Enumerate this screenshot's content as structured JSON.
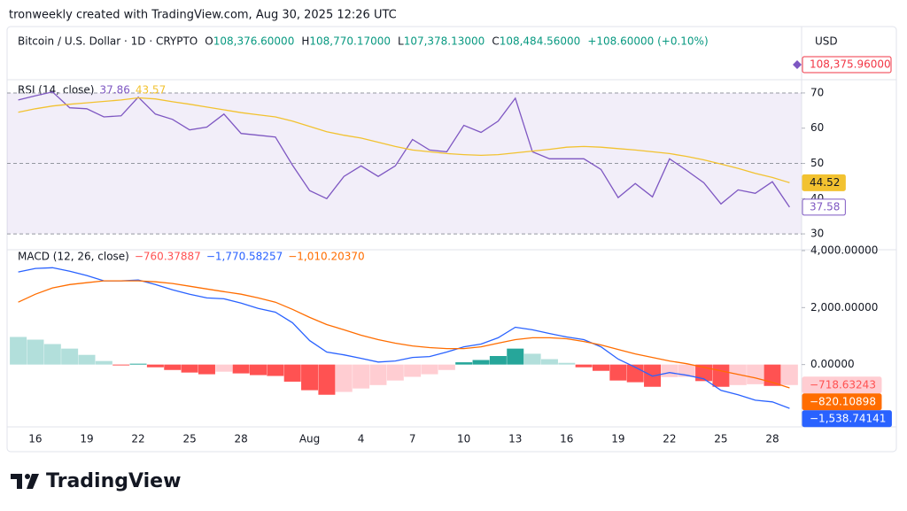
{
  "header": {
    "attribution": "tronweekly created with TradingView.com, Aug 30, 2025 12:26 UTC",
    "symbol": "Bitcoin / U.S. Dollar · 1D · CRYPTO",
    "ohlc": [
      {
        "label": "O",
        "value": "108,376.60000"
      },
      {
        "label": "H",
        "value": "108,770.17000"
      },
      {
        "label": "L",
        "value": "107,378.13000"
      },
      {
        "label": "C",
        "value": "108,484.56000"
      }
    ],
    "change": "+108.60000 (+0.10%)",
    "currency": "USD",
    "price_label": "108,375.96000"
  },
  "footer": {
    "logo": "TradingView"
  },
  "chart_data": [
    {
      "type": "line",
      "title": "RSI (14, close)",
      "ylim": [
        26,
        72.5
      ],
      "yticks": [
        30,
        40,
        50,
        60,
        70
      ],
      "band": [
        30,
        70
      ],
      "midline": 50,
      "band_color": "#7e57c2",
      "series": [
        {
          "color": "#7e57c2",
          "legend_value": "37.86",
          "values": [
            68.0,
            69.2,
            70.3,
            65.8,
            65.5,
            63.2,
            63.5,
            68.8,
            64.0,
            62.5,
            59.5,
            60.3,
            64.0,
            58.5,
            58.0,
            57.5,
            49.5,
            42.3,
            40.0,
            46.3,
            49.3,
            46.3,
            49.3,
            56.8,
            53.8,
            53.3,
            60.8,
            58.8,
            62.0,
            68.5,
            53.3,
            51.3,
            51.3,
            51.3,
            48.3,
            40.3,
            44.3,
            40.5,
            51.3,
            48.0,
            44.5,
            38.5,
            42.5,
            41.5,
            44.8,
            37.58
          ]
        },
        {
          "color": "#f2c230",
          "legend_value": "43.57",
          "values": [
            64.5,
            65.5,
            66.3,
            66.8,
            67.2,
            67.6,
            68.0,
            68.6,
            68.3,
            67.5,
            66.8,
            66.0,
            65.2,
            64.4,
            63.8,
            63.2,
            62.0,
            60.5,
            59.0,
            58.0,
            57.2,
            56.0,
            54.8,
            53.8,
            53.3,
            52.8,
            52.5,
            52.3,
            52.5,
            53.0,
            53.5,
            54.0,
            54.6,
            54.8,
            54.6,
            54.2,
            53.8,
            53.3,
            52.8,
            52.0,
            51.0,
            49.8,
            48.6,
            47.2,
            46.0,
            44.52
          ]
        }
      ]
    },
    {
      "type": "macd",
      "title": "MACD (12, 26, close)",
      "categories": [
        null,
        "16",
        null,
        null,
        "19",
        null,
        null,
        "22",
        null,
        null,
        "25",
        null,
        null,
        "28",
        null,
        null,
        null,
        "Aug",
        null,
        null,
        "4",
        null,
        null,
        "7",
        null,
        null,
        "10",
        null,
        null,
        "13",
        null,
        null,
        "16",
        null,
        null,
        "19",
        null,
        null,
        "22",
        null,
        null,
        "25",
        null,
        null,
        "28",
        null
      ],
      "ylim": [
        -2125,
        4000
      ],
      "yticks": [
        {
          "value": 0,
          "label": "0.00000"
        },
        {
          "value": 2000,
          "label": "2,000.00000"
        },
        {
          "value": 4000,
          "label": "4,000.00000"
        }
      ],
      "histogram": {
        "legend_value": "−760.37887",
        "last_label": "−718.63243",
        "colors": {
          "grow_above": "#26a69a",
          "fall_above": "#b2dfdb",
          "grow_below": "#ffcdd2",
          "fall_below": "#ff5252"
        },
        "values": [
          970,
          875,
          720,
          560,
          340,
          125,
          -30,
          30,
          -95,
          -190,
          -280,
          -340,
          -250,
          -310,
          -370,
          -400,
          -600,
          -900,
          -1060,
          -960,
          -840,
          -720,
          -560,
          -430,
          -340,
          -190,
          80,
          160,
          300,
          560,
          380,
          190,
          60,
          -95,
          -220,
          -560,
          -620,
          -780,
          -440,
          -430,
          -580,
          -780,
          -720,
          -690,
          -750,
          -718.63243
        ]
      },
      "series": [
        {
          "color": "#2962ff",
          "legend_value": "−1,770.58257",
          "last_label": "−1,538.74141",
          "values": [
            3250,
            3375,
            3400,
            3280,
            3125,
            2940,
            2940,
            2970,
            2810,
            2625,
            2470,
            2340,
            2310,
            2155,
            1970,
            1840,
            1470,
            840,
            440,
            340,
            220,
            90,
            125,
            250,
            280,
            440,
            625,
            720,
            940,
            1310,
            1220,
            1090,
            970,
            875,
            625,
            190,
            -95,
            -405,
            -280,
            -375,
            -500,
            -905,
            -1060,
            -1250,
            -1310,
            -1538.74141
          ]
        },
        {
          "color": "#ff6d00",
          "legend_value": "−1,010.20370",
          "last_label": "−820.10898",
          "values": [
            2190,
            2470,
            2690,
            2810,
            2875,
            2940,
            2940,
            2940,
            2905,
            2845,
            2750,
            2655,
            2560,
            2470,
            2340,
            2190,
            1940,
            1655,
            1405,
            1220,
            1030,
            875,
            750,
            655,
            595,
            560,
            560,
            625,
            750,
            875,
            940,
            940,
            905,
            810,
            690,
            530,
            375,
            250,
            125,
            30,
            -95,
            -220,
            -345,
            -470,
            -625,
            -820.10898
          ]
        }
      ]
    }
  ]
}
